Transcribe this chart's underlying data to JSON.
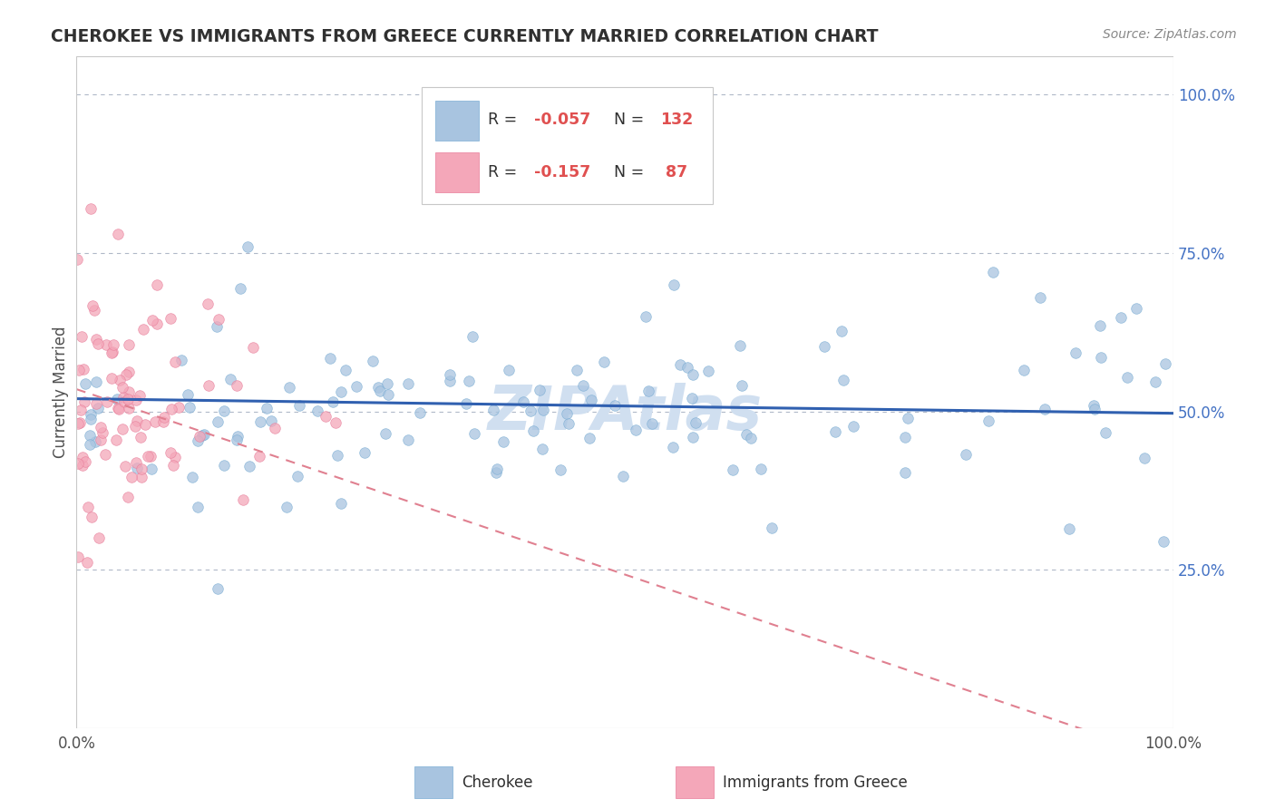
{
  "title": "CHEROKEE VS IMMIGRANTS FROM GREECE CURRENTLY MARRIED CORRELATION CHART",
  "source": "Source: ZipAtlas.com",
  "ylabel": "Currently Married",
  "cherokee_R": -0.057,
  "cherokee_N": 132,
  "greece_R": -0.157,
  "greece_N": 87,
  "cherokee_color": "#a8c4e0",
  "cherokee_edge_color": "#7aadd4",
  "greece_color": "#f4a7b9",
  "greece_edge_color": "#e87d9a",
  "cherokee_line_color": "#3060b0",
  "greece_line_color": "#e08090",
  "background_color": "#ffffff",
  "grid_color": "#b0b8c8",
  "title_color": "#303030",
  "right_tick_color": "#4472c4",
  "watermark_color": "#d0dff0",
  "legend_bg": "#ffffff",
  "legend_border": "#c8c8c8"
}
